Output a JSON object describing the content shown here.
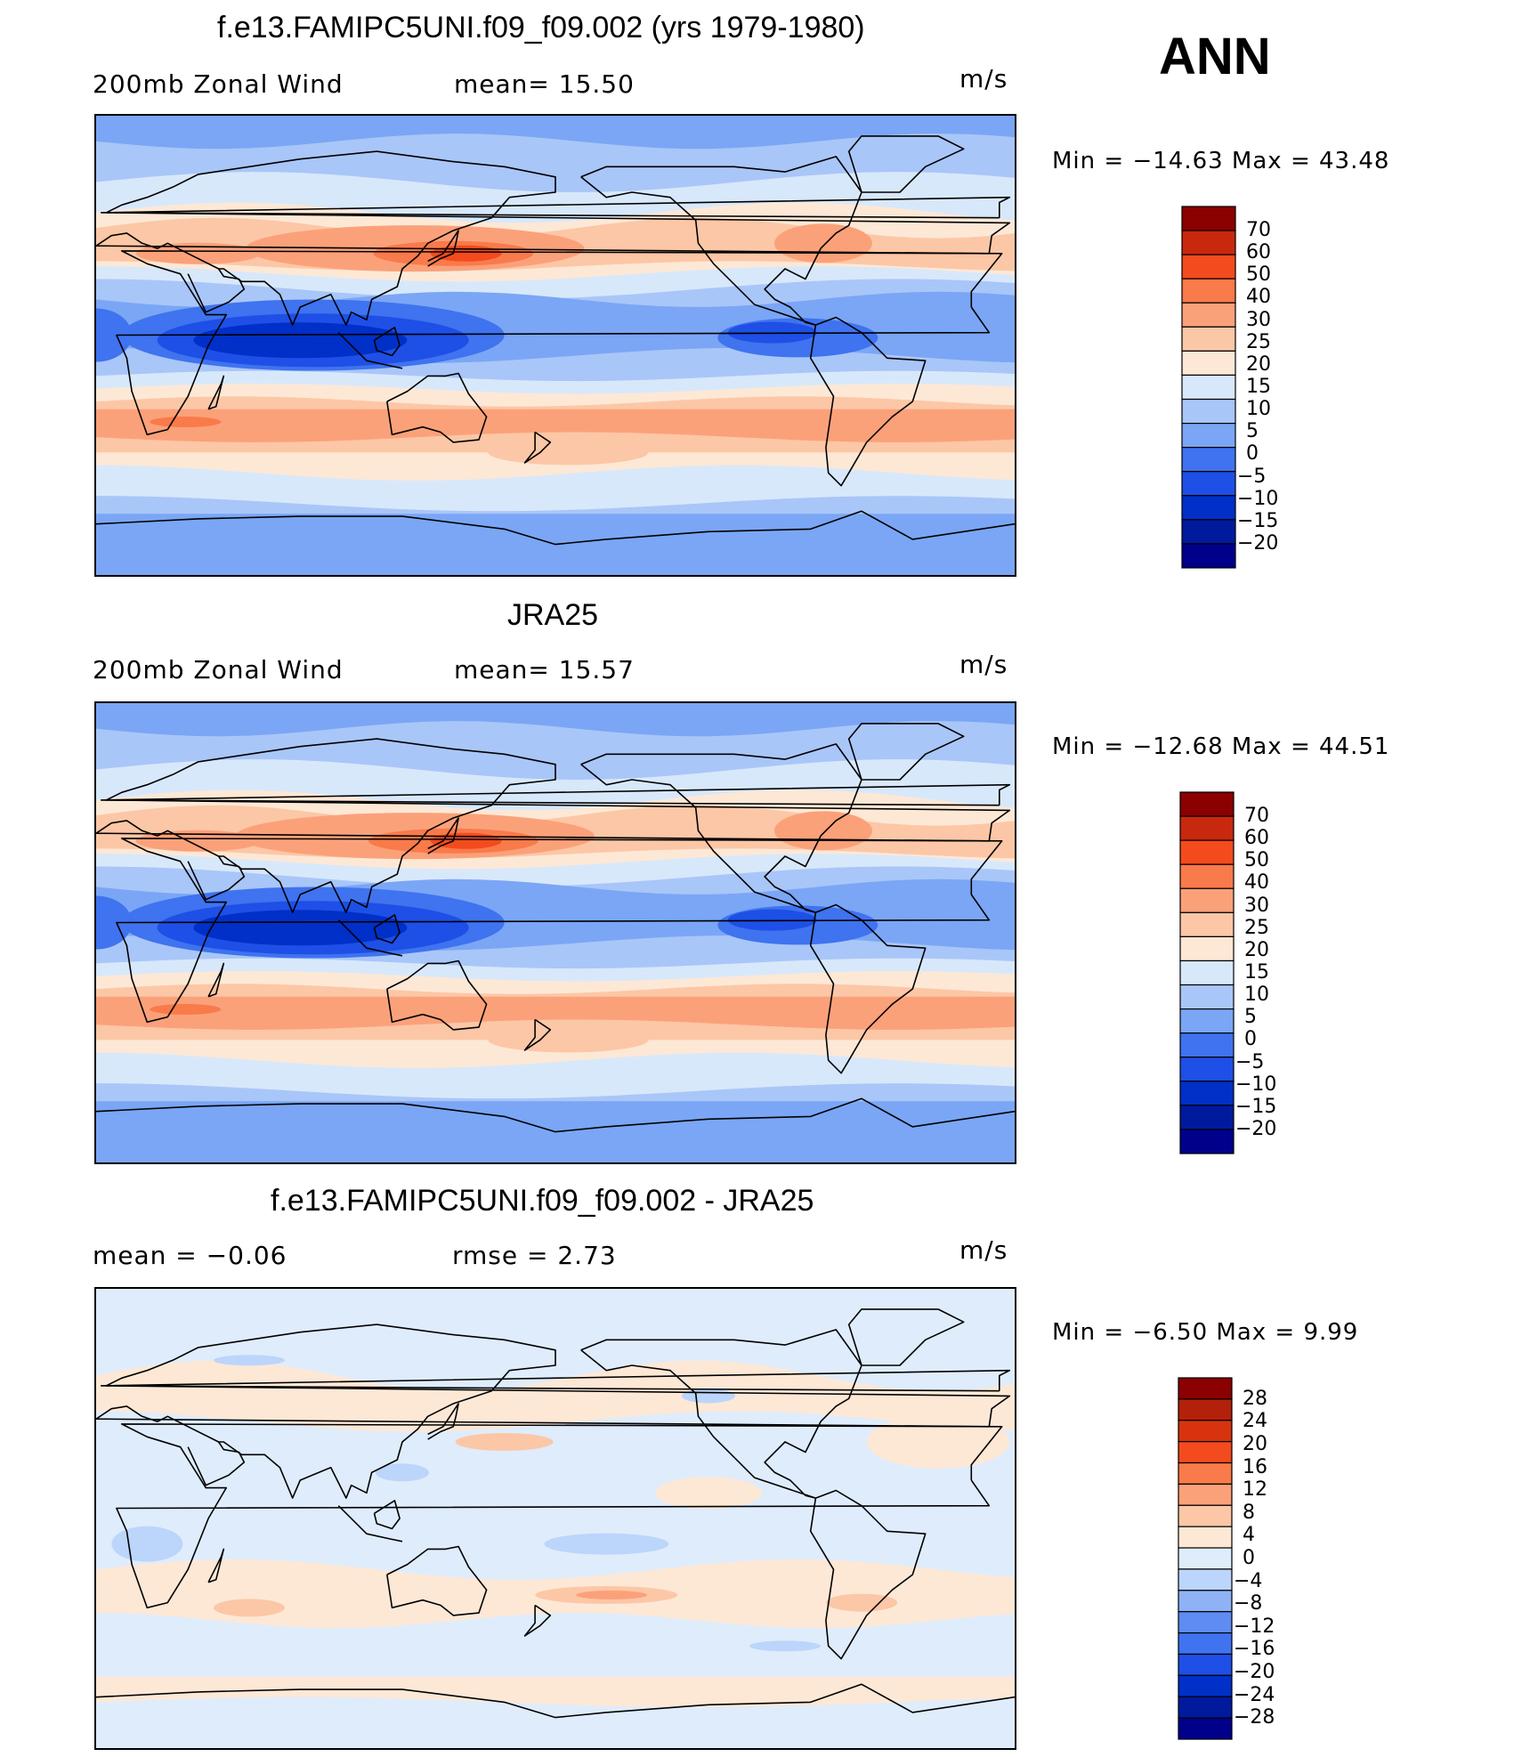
{
  "season": "ANN",
  "colors": {
    "wind_scale": [
      "#00008b",
      "#001a9e",
      "#0030c8",
      "#1e4fe6",
      "#3f73ef",
      "#7aa6f5",
      "#a9c6f8",
      "#d8e8fb",
      "#fde8d6",
      "#fcc7a6",
      "#fba17a",
      "#f97a4a",
      "#f34b1e",
      "#c8290e",
      "#8b0000"
    ],
    "diff_scale": [
      "#00008b",
      "#001a9e",
      "#0030c8",
      "#1e4fe6",
      "#3f73ef",
      "#5f8cf2",
      "#8fb2f6",
      "#bcd5fa",
      "#dfecfc",
      "#fde8d6",
      "#fcc7a6",
      "#fba17a",
      "#f97a4a",
      "#f34b1e",
      "#d8330f",
      "#b3210a",
      "#8b0000"
    ]
  },
  "panels": [
    {
      "id": "model",
      "title": "f.e13.FAMIPC5UNI.f09_f09.002 (yrs 1979-1980)",
      "left_label": "200mb  Zonal  Wind",
      "mid_label": "mean=   15.50",
      "units": "m/s",
      "minmax": "Min  =  −14.63  Max  =    43.48",
      "levels": [
        "70",
        "60",
        "50",
        "40",
        "30",
        "25",
        "20",
        "15",
        "10",
        "5",
        "0",
        "−5",
        "−10",
        "−15",
        "−20"
      ]
    },
    {
      "id": "obs",
      "title": "JRA25",
      "left_label": "200mb  Zonal  Wind",
      "mid_label": "mean=   15.57",
      "units": "m/s",
      "minmax": "Min  =  −12.68  Max  =    44.51",
      "levels": [
        "70",
        "60",
        "50",
        "40",
        "30",
        "25",
        "20",
        "15",
        "10",
        "5",
        "0",
        "−5",
        "−10",
        "−15",
        "−20"
      ]
    },
    {
      "id": "diff",
      "title": "f.e13.FAMIPC5UNI.f09_f09.002 - JRA25",
      "left_label": "mean  =    −0.06",
      "mid_label": "rmse  =     2.73",
      "units": "m/s",
      "minmax": "Min  =    −6.50  Max  =      9.99",
      "levels": [
        "28",
        "24",
        "20",
        "16",
        "12",
        "8",
        "4",
        "0",
        "−4",
        "−8",
        "−12",
        "−16",
        "−20",
        "−24",
        "−28"
      ]
    }
  ]
}
